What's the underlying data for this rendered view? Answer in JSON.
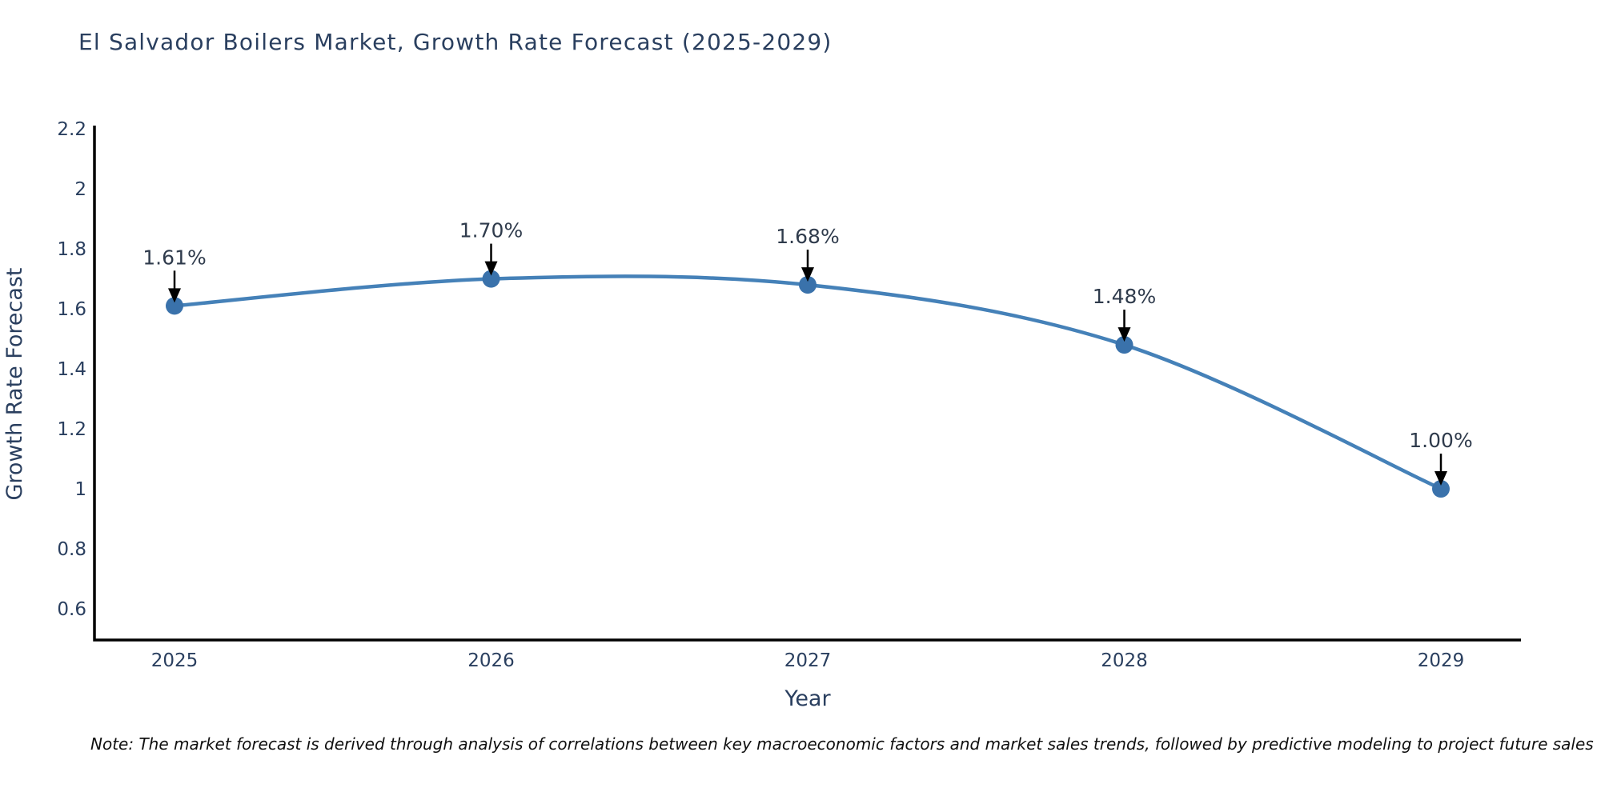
{
  "chart_data": {
    "type": "line",
    "title": "El Salvador Boilers Market, Growth Rate Forecast (2025-2029)",
    "xlabel": "Year",
    "ylabel": "Growth Rate Forecast",
    "categories": [
      "2025",
      "2026",
      "2027",
      "2028",
      "2029"
    ],
    "series": [
      {
        "name": "Growth Rate Forecast",
        "values": [
          1.61,
          1.7,
          1.68,
          1.48,
          1.0
        ]
      }
    ],
    "point_labels": [
      "1.61%",
      "1.70%",
      "1.68%",
      "1.48%",
      "1.00%"
    ],
    "ytick_labels": [
      "0.6",
      "0.8",
      "1",
      "1.2",
      "1.4",
      "1.6",
      "1.8",
      "2",
      "2.2"
    ],
    "ytick_values": [
      0.6,
      0.8,
      1.0,
      1.2,
      1.4,
      1.6,
      1.8,
      2.0,
      2.2
    ],
    "ylim": [
      0.496,
      2.211
    ],
    "grid": false,
    "legend": "none",
    "line_shape": "spline",
    "colors": {
      "line": "#4581b8",
      "marker": "#3a72ab",
      "axis": "#000000",
      "tick_label": "#2a3f5f",
      "title": "#2a3f5f",
      "annotation_text": "#2f3b4c",
      "annotation_arrow": "#000000",
      "background": "#ffffff"
    }
  },
  "note": {
    "text": "Note: The market forecast is derived through analysis of correlations between key macroeconomic factors and market sales trends, followed by predictive modeling to project future sales"
  }
}
